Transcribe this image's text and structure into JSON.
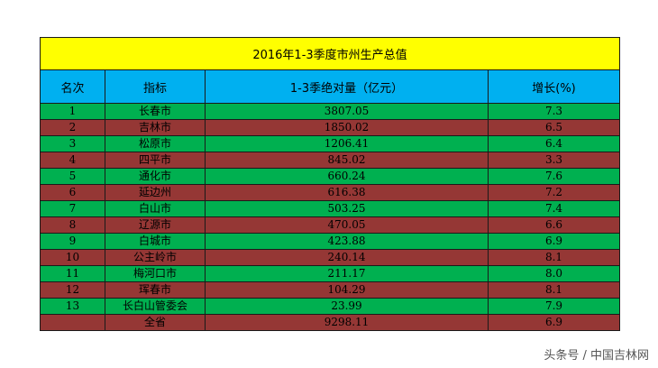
{
  "table": {
    "title": "2016年1-3季度市州生产总值",
    "headers": [
      "名次",
      "指标",
      "1-3季绝对量（亿元）",
      "增长(%)"
    ],
    "rows": [
      {
        "rank": "1",
        "name": "长春市",
        "value": "3807.05",
        "growth": "7.3",
        "color": "green"
      },
      {
        "rank": "2",
        "name": "吉林市",
        "value": "1850.02",
        "growth": "6.5",
        "color": "brown"
      },
      {
        "rank": "3",
        "name": "松原市",
        "value": "1206.41",
        "growth": "6.4",
        "color": "green"
      },
      {
        "rank": "4",
        "name": "四平市",
        "value": "845.02",
        "growth": "3.3",
        "color": "brown"
      },
      {
        "rank": "5",
        "name": "通化市",
        "value": "660.24",
        "growth": "7.6",
        "color": "green"
      },
      {
        "rank": "6",
        "name": "延边州",
        "value": "616.38",
        "growth": "7.2",
        "color": "brown"
      },
      {
        "rank": "7",
        "name": "白山市",
        "value": "503.25",
        "growth": "7.4",
        "color": "green"
      },
      {
        "rank": "8",
        "name": "辽源市",
        "value": "470.05",
        "growth": "6.6",
        "color": "brown"
      },
      {
        "rank": "9",
        "name": "白城市",
        "value": "423.88",
        "growth": "6.9",
        "color": "green"
      },
      {
        "rank": "10",
        "name": "公主岭市",
        "value": "240.14",
        "growth": "8.1",
        "color": "brown"
      },
      {
        "rank": "11",
        "name": "梅河口市",
        "value": "211.17",
        "growth": "8.0",
        "color": "green"
      },
      {
        "rank": "12",
        "name": "珲春市",
        "value": "104.29",
        "growth": "8.1",
        "color": "brown"
      },
      {
        "rank": "13",
        "name": "长白山管委会",
        "value": "23.99",
        "growth": "7.9",
        "color": "green"
      },
      {
        "rank": "",
        "name": "全省",
        "value": "9298.11",
        "growth": "6.9",
        "color": "brown"
      }
    ]
  },
  "colors": {
    "title_bg": "#ffff00",
    "header_bg": "#00b0f0",
    "green_row": "#00b050",
    "brown_row": "#953735"
  },
  "watermark": "头条号 / 中国吉林网"
}
